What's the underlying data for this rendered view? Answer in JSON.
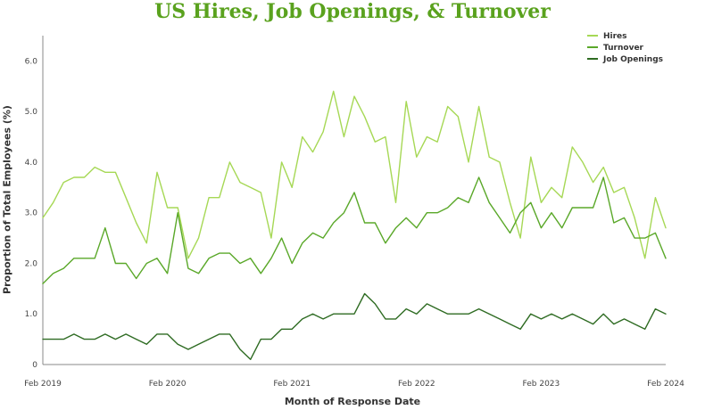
{
  "chart_data": {
    "type": "line",
    "title": "US Hires, Job Openings, & Turnover",
    "xlabel": "Month of Response Date",
    "ylabel": "Proportion of Total Employees (%)",
    "x": [
      "2019-02",
      "2019-03",
      "2019-04",
      "2019-05",
      "2019-06",
      "2019-07",
      "2019-08",
      "2019-09",
      "2019-10",
      "2019-11",
      "2019-12",
      "2020-01",
      "2020-02",
      "2020-03",
      "2020-04",
      "2020-05",
      "2020-06",
      "2020-07",
      "2020-08",
      "2020-09",
      "2020-10",
      "2020-11",
      "2020-12",
      "2021-01",
      "2021-02",
      "2021-03",
      "2021-04",
      "2021-05",
      "2021-06",
      "2021-07",
      "2021-08",
      "2021-09",
      "2021-10",
      "2021-11",
      "2021-12",
      "2022-01",
      "2022-02",
      "2022-03",
      "2022-04",
      "2022-05",
      "2022-06",
      "2022-07",
      "2022-08",
      "2022-09",
      "2022-10",
      "2022-11",
      "2022-12",
      "2023-01",
      "2023-02",
      "2023-03",
      "2023-04",
      "2023-05",
      "2023-06",
      "2023-07",
      "2023-08",
      "2023-09",
      "2023-10",
      "2023-11",
      "2023-12",
      "2024-01",
      "2024-02"
    ],
    "ylim": [
      0,
      6.5
    ],
    "yticks": [
      "0",
      "1.0",
      "2.0",
      "3.0",
      "4.0",
      "5.0",
      "6.0"
    ],
    "xticks": [
      {
        "x": "2019-02",
        "label": "Feb 2019"
      },
      {
        "x": "2020-02",
        "label": "Feb 2020"
      },
      {
        "x": "2021-02",
        "label": "Feb 2021"
      },
      {
        "x": "2022-02",
        "label": "Feb 2022"
      },
      {
        "x": "2023-02",
        "label": "Feb 2023"
      },
      {
        "x": "2024-02",
        "label": "Feb 2024"
      }
    ],
    "grid": false,
    "legend_position": "top-right",
    "series": [
      {
        "name": "Hires",
        "color": "#a6d855",
        "values": [
          2.9,
          3.2,
          3.6,
          3.7,
          3.7,
          3.9,
          3.8,
          3.8,
          3.3,
          2.8,
          2.4,
          3.8,
          3.1,
          3.1,
          2.1,
          2.5,
          3.3,
          3.3,
          4.0,
          3.6,
          3.5,
          3.4,
          2.5,
          4.0,
          3.5,
          4.5,
          4.2,
          4.6,
          5.4,
          4.5,
          5.3,
          4.9,
          4.4,
          4.5,
          3.2,
          5.2,
          4.1,
          4.5,
          4.4,
          5.1,
          4.9,
          4.0,
          5.1,
          4.1,
          4.0,
          3.2,
          2.5,
          4.1,
          3.2,
          3.5,
          3.3,
          4.3,
          4.0,
          3.6,
          3.9,
          3.4,
          3.5,
          2.9,
          2.1,
          3.3,
          2.7
        ]
      },
      {
        "name": "Turnover",
        "color": "#5aa829",
        "values": [
          1.6,
          1.8,
          1.9,
          2.1,
          2.1,
          2.1,
          2.7,
          2.0,
          2.0,
          1.7,
          2.0,
          2.1,
          1.8,
          3.0,
          1.9,
          1.8,
          2.1,
          2.2,
          2.2,
          2.0,
          2.1,
          1.8,
          2.1,
          2.5,
          2.0,
          2.4,
          2.6,
          2.5,
          2.8,
          3.0,
          3.4,
          2.8,
          2.8,
          2.4,
          2.7,
          2.9,
          2.7,
          3.0,
          3.0,
          3.1,
          3.3,
          3.2,
          3.7,
          3.2,
          2.9,
          2.6,
          3.0,
          3.2,
          2.7,
          3.0,
          2.7,
          3.1,
          3.1,
          3.1,
          3.7,
          2.8,
          2.9,
          2.5,
          2.5,
          2.6,
          2.1
        ]
      },
      {
        "name": "Job Openings",
        "color": "#2e6b22",
        "values": [
          0.5,
          0.5,
          0.5,
          0.6,
          0.5,
          0.5,
          0.6,
          0.5,
          0.6,
          0.5,
          0.4,
          0.6,
          0.6,
          0.4,
          0.3,
          0.4,
          0.5,
          0.6,
          0.6,
          0.3,
          0.1,
          0.5,
          0.5,
          0.7,
          0.7,
          0.9,
          1.0,
          0.9,
          1.0,
          1.0,
          1.0,
          1.4,
          1.2,
          0.9,
          0.9,
          1.1,
          1.0,
          1.2,
          1.1,
          1.0,
          1.0,
          1.0,
          1.1,
          1.0,
          0.9,
          0.8,
          0.7,
          1.0,
          0.9,
          1.0,
          0.9,
          1.0,
          0.9,
          0.8,
          1.0,
          0.8,
          0.9,
          0.8,
          0.7,
          1.1,
          1.0
        ]
      }
    ]
  }
}
